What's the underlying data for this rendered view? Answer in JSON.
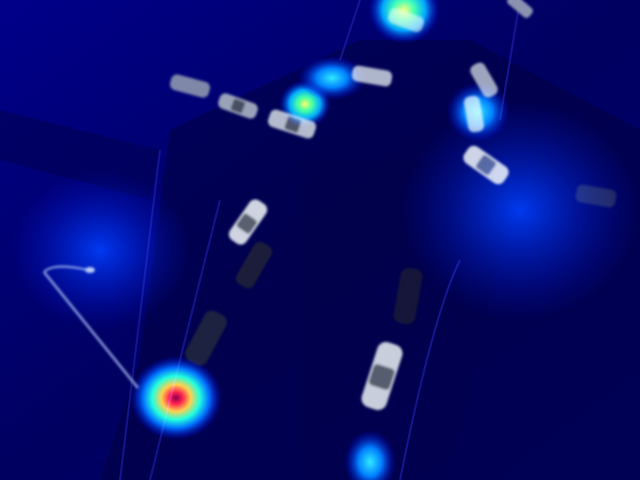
{
  "image": {
    "kind": "aerial night street photograph with heatmap overlay",
    "colormap": "jet",
    "colors": {
      "background_low": "#00007a",
      "heat_mid": "#00ffff",
      "heat_warm": "#ffff00",
      "heat_hot": "#ff2a00",
      "heat_peak": "#990000",
      "car_body": "#d9dde6"
    }
  }
}
